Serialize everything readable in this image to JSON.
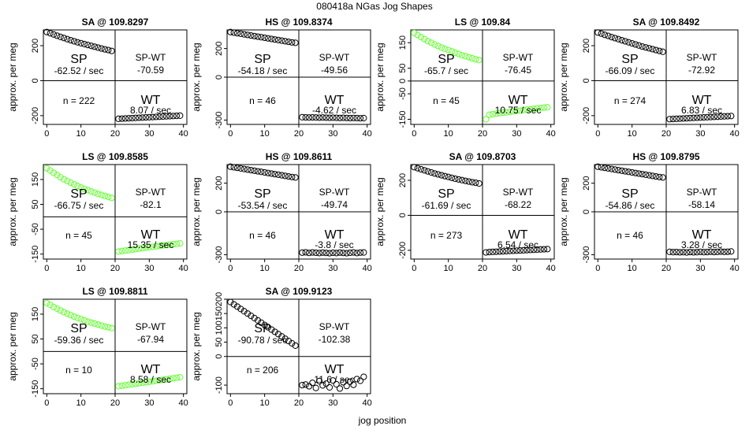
{
  "figure": {
    "title": "080418a   NGas Jog Shapes",
    "xlabel": "jog position"
  },
  "chart_data": [
    {
      "type": "scatter",
      "title": "SA @ 109.8297",
      "xlabel": "",
      "ylabel": "approx. per meg",
      "xlim": [
        -1,
        41
      ],
      "ylim": [
        -250,
        290
      ],
      "xticks": [
        0,
        10,
        20,
        30,
        40
      ],
      "yticks": [
        200,
        0,
        -200
      ],
      "color": "#000000",
      "x": [
        0,
        1,
        2,
        3,
        4,
        5,
        6,
        7,
        8,
        9,
        10,
        11,
        12,
        13,
        14,
        15,
        16,
        17,
        18,
        19,
        21,
        22,
        23,
        24,
        25,
        26,
        27,
        28,
        29,
        30,
        31,
        32,
        33,
        34,
        35,
        36,
        37,
        38,
        39
      ],
      "y": [
        278,
        271,
        264,
        257,
        250,
        244,
        237,
        231,
        225,
        219,
        214,
        209,
        204,
        199,
        194,
        189,
        184,
        179,
        175,
        170,
        -218,
        -217,
        -216,
        -215,
        -214,
        -213,
        -212,
        -211,
        -210,
        -209,
        -208,
        -207,
        -206,
        -205,
        -204,
        -203,
        -202,
        -201,
        -200
      ],
      "hline": 0,
      "vline": 20,
      "annotations": {
        "sp": "SP",
        "sp_rate": "-62.52 / sec",
        "spwt": "SP-WT",
        "spwt_val": "-70.59",
        "n": "n = 222",
        "wt": "WT",
        "wt_rate": "8.07 / sec"
      }
    },
    {
      "type": "scatter",
      "title": "HS @ 109.8374",
      "xlabel": "",
      "ylabel": "approx. per meg",
      "xlim": [
        -1,
        41
      ],
      "ylim": [
        -330,
        330
      ],
      "xticks": [
        0,
        10,
        20,
        30,
        40
      ],
      "yticks": [
        200,
        0,
        -300
      ],
      "color": "#000000",
      "x": [
        0,
        1,
        2,
        3,
        4,
        5,
        6,
        7,
        8,
        9,
        10,
        11,
        12,
        13,
        14,
        15,
        16,
        17,
        18,
        19,
        21,
        22,
        23,
        24,
        25,
        26,
        27,
        28,
        29,
        30,
        31,
        32,
        33,
        34,
        35,
        36,
        37,
        38,
        39
      ],
      "y": [
        315,
        311,
        307,
        303,
        299,
        295,
        291,
        287,
        283,
        279,
        275,
        271,
        267,
        263,
        259,
        255,
        251,
        247,
        243,
        240,
        -280,
        -281,
        -282,
        -281,
        -282,
        -283,
        -282,
        -283,
        -284,
        -283,
        -284,
        -285,
        -284,
        -285,
        -286,
        -285,
        -286,
        -287,
        -286
      ],
      "hline": 0,
      "vline": 20,
      "annotations": {
        "sp": "SP",
        "sp_rate": "-54.18 / sec",
        "spwt": "SP-WT",
        "spwt_val": "-49.56",
        "n": "n = 46",
        "wt": "WT",
        "wt_rate": "-4.62 / sec"
      }
    },
    {
      "type": "scatter",
      "title": "LS @ 109.84",
      "xlabel": "",
      "ylabel": "approx. per meg",
      "xlim": [
        -1,
        41
      ],
      "ylim": [
        -170,
        200
      ],
      "xticks": [
        0,
        10,
        20,
        30,
        40
      ],
      "yticks": [
        150,
        50,
        0,
        -50,
        -150
      ],
      "color": "#66ff33",
      "x": [
        0,
        1,
        2,
        3,
        4,
        5,
        6,
        7,
        8,
        9,
        10,
        11,
        12,
        13,
        14,
        15,
        16,
        17,
        18,
        19,
        21,
        22,
        23,
        24,
        25,
        26,
        27,
        28,
        29,
        30,
        31,
        32,
        33,
        34,
        35,
        36,
        37,
        38,
        39
      ],
      "y": [
        188,
        180,
        172,
        164,
        156,
        150,
        143,
        137,
        131,
        126,
        121,
        116,
        111,
        106,
        101,
        97,
        93,
        89,
        85,
        82,
        -150,
        -132,
        -130,
        -128,
        -126,
        -124,
        -123,
        -121,
        -119,
        -117,
        -116,
        -114,
        -112,
        -111,
        -109,
        -107,
        -106,
        -104,
        -103
      ],
      "hline": 0,
      "vline": 20,
      "annotations": {
        "sp": "SP",
        "sp_rate": "-65.7 / sec",
        "spwt": "SP-WT",
        "spwt_val": "-76.45",
        "n": "n = 45",
        "wt": "WT",
        "wt_rate": "10.75 / sec"
      }
    },
    {
      "type": "scatter",
      "title": "SA @ 109.8492",
      "xlabel": "",
      "ylabel": "approx. per meg",
      "xlim": [
        -1,
        41
      ],
      "ylim": [
        -250,
        290
      ],
      "xticks": [
        0,
        10,
        20,
        30,
        40
      ],
      "yticks": [
        200,
        0,
        -200
      ],
      "color": "#000000",
      "x": [
        0,
        1,
        2,
        3,
        4,
        5,
        6,
        7,
        8,
        9,
        10,
        11,
        12,
        13,
        14,
        15,
        16,
        17,
        18,
        19,
        21,
        22,
        23,
        24,
        25,
        26,
        27,
        28,
        29,
        30,
        31,
        32,
        33,
        34,
        35,
        36,
        37,
        38,
        39
      ],
      "y": [
        275,
        269,
        262,
        256,
        249,
        243,
        237,
        231,
        225,
        219,
        213,
        207,
        201,
        195,
        190,
        185,
        180,
        175,
        170,
        165,
        -220,
        -219,
        -218,
        -217,
        -216,
        -215,
        -214,
        -213,
        -212,
        -211,
        -210,
        -209,
        -208,
        -207,
        -206,
        -205,
        -204,
        -203,
        -202
      ],
      "hline": 0,
      "vline": 20,
      "annotations": {
        "sp": "SP",
        "sp_rate": "-66.09 / sec",
        "spwt": "SP-WT",
        "spwt_val": "-72.92",
        "n": "n = 274",
        "wt": "WT",
        "wt_rate": "6.83 / sec"
      }
    },
    {
      "type": "scatter",
      "title": "LS @ 109.8585",
      "xlabel": "",
      "ylabel": "approx. per meg",
      "xlim": [
        -1,
        41
      ],
      "ylim": [
        -170,
        210
      ],
      "xticks": [
        0,
        10,
        20,
        30,
        40
      ],
      "yticks": [
        150,
        50,
        -50,
        -150
      ],
      "color": "#66ff33",
      "x": [
        0,
        1,
        2,
        3,
        4,
        5,
        6,
        7,
        8,
        9,
        10,
        11,
        12,
        13,
        14,
        15,
        16,
        17,
        18,
        19,
        21,
        22,
        23,
        24,
        25,
        26,
        27,
        28,
        29,
        30,
        31,
        32,
        33,
        34,
        35,
        36,
        37,
        38,
        39
      ],
      "y": [
        195,
        186,
        177,
        168,
        159,
        151,
        144,
        137,
        130,
        124,
        118,
        112,
        107,
        102,
        97,
        92,
        88,
        84,
        80,
        76,
        -140,
        -138,
        -136,
        -134,
        -132,
        -130,
        -128,
        -126,
        -124,
        -122,
        -121,
        -119,
        -117,
        -115,
        -114,
        -112,
        -110,
        -109,
        -107
      ],
      "hline": 0,
      "vline": 20,
      "annotations": {
        "sp": "SP",
        "sp_rate": "-66.75 / sec",
        "spwt": "SP-WT",
        "spwt_val": "-82.1",
        "n": "n = 45",
        "wt": "WT",
        "wt_rate": "15.35 / sec"
      }
    },
    {
      "type": "scatter",
      "title": "HS @ 109.8611",
      "xlabel": "",
      "ylabel": "approx. per meg",
      "xlim": [
        -1,
        41
      ],
      "ylim": [
        -330,
        330
      ],
      "xticks": [
        0,
        10,
        20,
        30,
        40
      ],
      "yticks": [
        200,
        0,
        -300
      ],
      "color": "#000000",
      "x": [
        0,
        1,
        2,
        3,
        4,
        5,
        6,
        7,
        8,
        9,
        10,
        11,
        12,
        13,
        14,
        15,
        16,
        17,
        18,
        19,
        21,
        22,
        23,
        24,
        25,
        26,
        27,
        28,
        29,
        30,
        31,
        32,
        33,
        34,
        35,
        36,
        37,
        38,
        39
      ],
      "y": [
        315,
        311,
        307,
        303,
        299,
        295,
        291,
        287,
        283,
        279,
        275,
        271,
        267,
        263,
        259,
        255,
        251,
        247,
        243,
        240,
        -285,
        -283,
        -287,
        -284,
        -286,
        -288,
        -285,
        -287,
        -289,
        -286,
        -288,
        -285,
        -287,
        -289,
        -286,
        -284,
        -288,
        -285,
        -284
      ],
      "hline": 0,
      "vline": 20,
      "annotations": {
        "sp": "SP",
        "sp_rate": "-53.54 / sec",
        "spwt": "SP-WT",
        "spwt_val": "-49.74",
        "n": "n = 46",
        "wt": "WT",
        "wt_rate": "-3.8 / sec"
      }
    },
    {
      "type": "scatter",
      "title": "SA @ 109.8703",
      "xlabel": "",
      "ylabel": "approx. per meg",
      "xlim": [
        -1,
        41
      ],
      "ylim": [
        -250,
        290
      ],
      "xticks": [
        0,
        10,
        20,
        30,
        40
      ],
      "yticks": [
        200,
        0,
        -200
      ],
      "color": "#000000",
      "x": [
        0,
        1,
        2,
        3,
        4,
        5,
        6,
        7,
        8,
        9,
        10,
        11,
        12,
        13,
        14,
        15,
        16,
        17,
        18,
        19,
        21,
        22,
        23,
        24,
        25,
        26,
        27,
        28,
        29,
        30,
        31,
        32,
        33,
        34,
        35,
        36,
        37,
        38,
        39
      ],
      "y": [
        275,
        269,
        263,
        257,
        251,
        245,
        239,
        234,
        229,
        224,
        219,
        214,
        209,
        205,
        201,
        197,
        193,
        189,
        186,
        182,
        -212,
        -210,
        -209,
        -208,
        -207,
        -206,
        -205,
        -204,
        -203,
        -202,
        -201,
        -200,
        -199,
        -198,
        -197,
        -196,
        -195,
        -194,
        -193
      ],
      "hline": 0,
      "vline": 20,
      "annotations": {
        "sp": "SP",
        "sp_rate": "-61.69 / sec",
        "spwt": "SP-WT",
        "spwt_val": "-68.22",
        "n": "n = 273",
        "wt": "WT",
        "wt_rate": "6.54 / sec"
      }
    },
    {
      "type": "scatter",
      "title": "HS @ 109.8795",
      "xlabel": "",
      "ylabel": "approx. per meg",
      "xlim": [
        -1,
        41
      ],
      "ylim": [
        -330,
        330
      ],
      "xticks": [
        0,
        10,
        20,
        30,
        40
      ],
      "yticks": [
        200,
        0,
        -300
      ],
      "color": "#000000",
      "x": [
        0,
        1,
        2,
        3,
        4,
        5,
        6,
        7,
        8,
        9,
        10,
        11,
        12,
        13,
        14,
        15,
        16,
        17,
        18,
        19,
        21,
        22,
        23,
        24,
        25,
        26,
        27,
        28,
        29,
        30,
        31,
        32,
        33,
        34,
        35,
        36,
        37,
        38,
        39
      ],
      "y": [
        315,
        311,
        307,
        303,
        299,
        295,
        291,
        287,
        283,
        279,
        275,
        271,
        267,
        263,
        259,
        255,
        251,
        247,
        243,
        240,
        -280,
        -282,
        -281,
        -283,
        -282,
        -284,
        -281,
        -283,
        -282,
        -280,
        -282,
        -281,
        -279,
        -281,
        -280,
        -278,
        -280,
        -279,
        -277
      ],
      "hline": 0,
      "vline": 20,
      "annotations": {
        "sp": "SP",
        "sp_rate": "-54.86 / sec",
        "spwt": "SP-WT",
        "spwt_val": "-58.14",
        "n": "n = 46",
        "wt": "WT",
        "wt_rate": "3.28 / sec"
      }
    },
    {
      "type": "scatter",
      "title": "LS @ 109.8811",
      "xlabel": "",
      "ylabel": "approx. per meg",
      "xlim": [
        -1,
        41
      ],
      "ylim": [
        -170,
        210
      ],
      "xticks": [
        0,
        10,
        20,
        30,
        40
      ],
      "yticks": [
        150,
        50,
        -50,
        -150
      ],
      "color": "#66ff33",
      "x": [
        0,
        1,
        2,
        3,
        4,
        5,
        6,
        7,
        8,
        9,
        10,
        11,
        12,
        13,
        14,
        15,
        16,
        17,
        18,
        19,
        21,
        22,
        23,
        24,
        25,
        26,
        27,
        28,
        29,
        30,
        31,
        32,
        33,
        34,
        35,
        36,
        37,
        38,
        39
      ],
      "y": [
        195,
        187,
        179,
        172,
        165,
        158,
        152,
        146,
        140,
        135,
        130,
        125,
        120,
        116,
        112,
        108,
        104,
        100,
        97,
        94,
        -140,
        -138,
        -136,
        -134,
        -132,
        -130,
        -128,
        -126,
        -124,
        -122,
        -120,
        -118,
        -116,
        -114,
        -112,
        -110,
        -108,
        -106,
        -104
      ],
      "hline": 0,
      "vline": 20,
      "annotations": {
        "sp": "SP",
        "sp_rate": "-59.36 / sec",
        "spwt": "SP-WT",
        "spwt_val": "-67.94",
        "n": "n = 10",
        "wt": "WT",
        "wt_rate": "8.58 / sec"
      }
    },
    {
      "type": "scatter",
      "title": "SA @ 109.9123",
      "xlabel": "",
      "ylabel": "approx. per meg",
      "xlim": [
        -1,
        41
      ],
      "ylim": [
        -130,
        200
      ],
      "xticks": [
        0,
        10,
        20,
        30,
        40
      ],
      "yticks": [
        200,
        150,
        100,
        50,
        0,
        -100
      ],
      "color": "#000000",
      "x": [
        0,
        1,
        2,
        3,
        4,
        5,
        6,
        7,
        8,
        9,
        10,
        11,
        12,
        13,
        14,
        15,
        16,
        17,
        18,
        19,
        21,
        22,
        23,
        24,
        25,
        26,
        27,
        28,
        29,
        30,
        31,
        32,
        33,
        34,
        35,
        36,
        37,
        38,
        39
      ],
      "y": [
        190,
        182,
        174,
        166,
        158,
        150,
        142,
        134,
        126,
        118,
        110,
        102,
        94,
        86,
        78,
        70,
        62,
        54,
        46,
        38,
        -100,
        -98,
        -104,
        -92,
        -110,
        -86,
        -101,
        -95,
        -108,
        -84,
        -97,
        -112,
        -90,
        -103,
        -88,
        -99,
        -79,
        -85,
        -71
      ],
      "hline": 0,
      "vline": 20,
      "annotations": {
        "sp": "SP",
        "sp_rate": "-90.78 / sec",
        "spwt": "SP-WT",
        "spwt_val": "-102.38",
        "n": "n = 206",
        "wt": "WT",
        "wt_rate": "11.6 / sec"
      }
    }
  ]
}
